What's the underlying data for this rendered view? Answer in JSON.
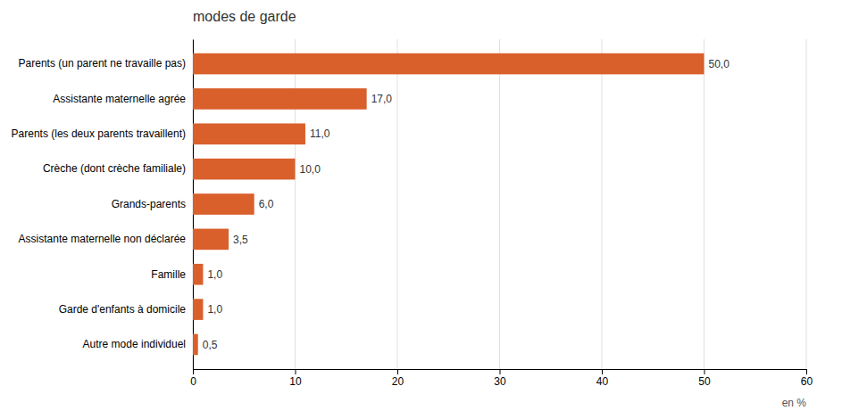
{
  "chart_data": {
    "type": "bar",
    "orientation": "horizontal",
    "title": "modes de garde",
    "xlabel": "en %",
    "categories": [
      "Autre mode individuel",
      "Garde d'enfants à domicile",
      "Famille",
      "Assistante maternelle non déclarée",
      "Grands-parents",
      "Crèche (dont crèche familiale)",
      "Parents (les deux parents travaillent)",
      "Assistante maternelle agrée",
      "Parents (un parent ne travaille pas)"
    ],
    "values": [
      0.5,
      1.0,
      1.0,
      3.5,
      6.0,
      10.0,
      11.0,
      17.0,
      50.0
    ],
    "value_labels": [
      "0,5",
      "1,0",
      "1,0",
      "3,5",
      "6,0",
      "10,0",
      "11,0",
      "17,0",
      "50,0"
    ],
    "data_labels": true,
    "color": "#d95f2b",
    "xlim": [
      0,
      60
    ],
    "xticks": [
      0,
      10,
      20,
      30,
      40,
      50,
      60
    ],
    "grid": true
  }
}
